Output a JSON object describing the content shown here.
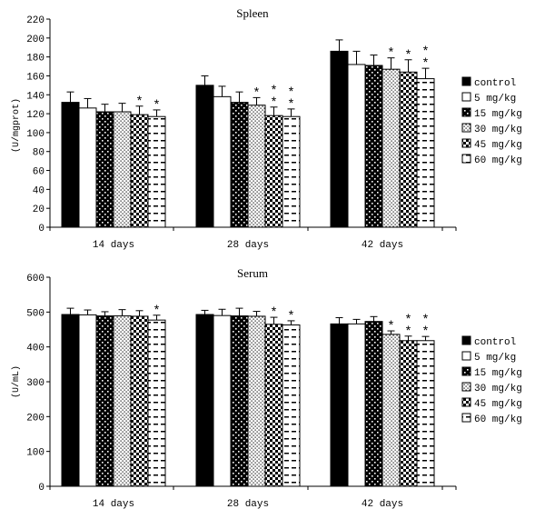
{
  "chart_data": [
    {
      "type": "bar",
      "title": "Spleen",
      "ylabel": "(U/mgprot)",
      "ylim": [
        0,
        220
      ],
      "yticks": [
        0,
        20,
        40,
        60,
        80,
        100,
        120,
        140,
        160,
        180,
        200,
        220
      ],
      "categories": [
        "14 days",
        "28 days",
        "42 days"
      ],
      "series": [
        {
          "name": "control",
          "values": [
            132,
            150,
            186
          ],
          "errors": [
            11,
            10,
            12
          ],
          "stars": [
            0,
            0,
            0
          ]
        },
        {
          "name": "5 mg/kg",
          "values": [
            126,
            138,
            172
          ],
          "errors": [
            10,
            11,
            14
          ],
          "stars": [
            0,
            0,
            0
          ]
        },
        {
          "name": "15 mg/kg",
          "values": [
            122,
            132,
            171
          ],
          "errors": [
            8,
            11,
            11
          ],
          "stars": [
            0,
            0,
            0
          ]
        },
        {
          "name": "30 mg/kg",
          "values": [
            122,
            129,
            167
          ],
          "errors": [
            9,
            8,
            12
          ],
          "stars": [
            0,
            1,
            1
          ]
        },
        {
          "name": "45 mg/kg",
          "values": [
            119,
            118,
            164
          ],
          "errors": [
            9,
            9,
            13
          ],
          "stars": [
            1,
            2,
            1
          ]
        },
        {
          "name": "60 mg/kg",
          "values": [
            117,
            117,
            157
          ],
          "errors": [
            7,
            8,
            11
          ],
          "stars": [
            1,
            2,
            2
          ]
        }
      ],
      "legend_position": "right",
      "grid": false
    },
    {
      "type": "bar",
      "title": "Serum",
      "ylabel": "(U/mL)",
      "ylim": [
        0,
        600
      ],
      "yticks": [
        0,
        100,
        200,
        300,
        400,
        500,
        600
      ],
      "categories": [
        "14 days",
        "28 days",
        "42 days"
      ],
      "series": [
        {
          "name": "control",
          "values": [
            493,
            493,
            466
          ],
          "errors": [
            18,
            12,
            18
          ],
          "stars": [
            0,
            0,
            0
          ]
        },
        {
          "name": "5 mg/kg",
          "values": [
            492,
            490,
            466
          ],
          "errors": [
            14,
            18,
            13
          ],
          "stars": [
            0,
            0,
            0
          ]
        },
        {
          "name": "15 mg/kg",
          "values": [
            489,
            489,
            473
          ],
          "errors": [
            12,
            22,
            14
          ],
          "stars": [
            0,
            0,
            0
          ]
        },
        {
          "name": "30 mg/kg",
          "values": [
            489,
            488,
            436
          ],
          "errors": [
            18,
            14,
            10
          ],
          "stars": [
            0,
            0,
            1
          ]
        },
        {
          "name": "45 mg/kg",
          "values": [
            488,
            465,
            418
          ],
          "errors": [
            16,
            20,
            13
          ],
          "stars": [
            0,
            1,
            2
          ]
        },
        {
          "name": "60 mg/kg",
          "values": [
            477,
            463,
            418
          ],
          "errors": [
            14,
            12,
            12
          ],
          "stars": [
            1,
            1,
            2
          ]
        }
      ],
      "legend_position": "right",
      "grid": false
    }
  ]
}
